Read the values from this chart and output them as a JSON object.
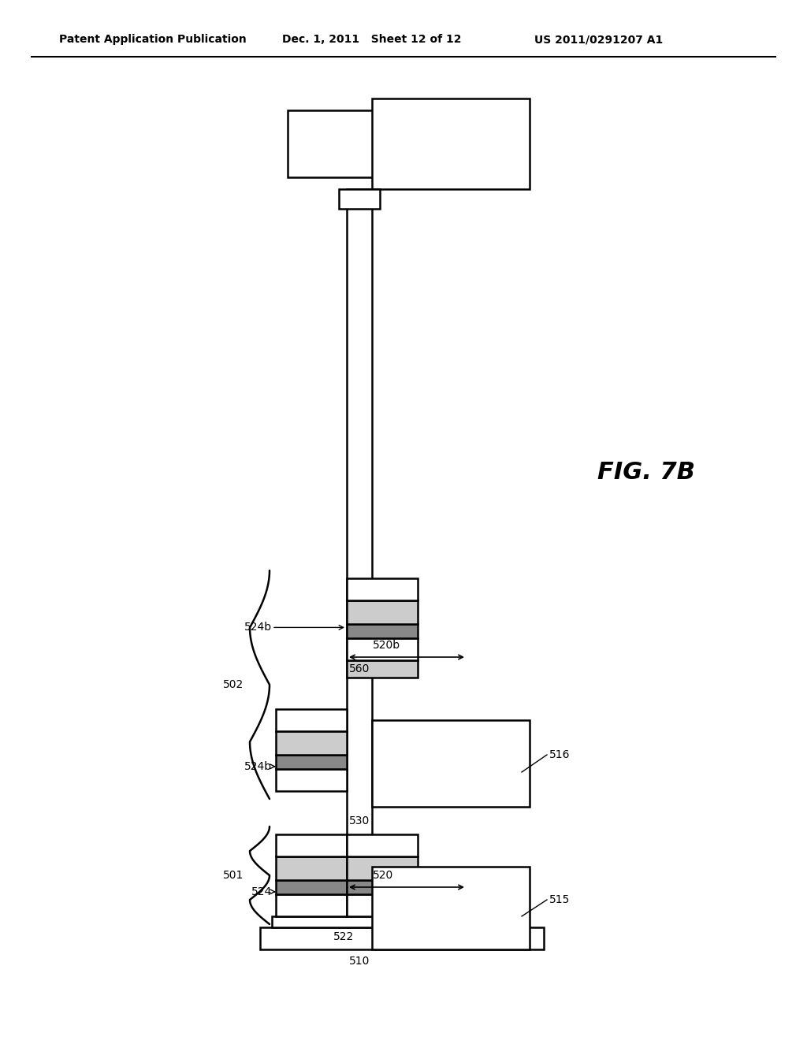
{
  "bg_color": "#ffffff",
  "header_left": "Patent Application Publication",
  "header_mid": "Dec. 1, 2011   Sheet 12 of 12",
  "header_right": "US 2011/0291207 A1",
  "fig_label": "FIG. 7B",
  "dark_gray": "#888888",
  "light_gray": "#cccccc",
  "med_gray": "#aaaaaa"
}
